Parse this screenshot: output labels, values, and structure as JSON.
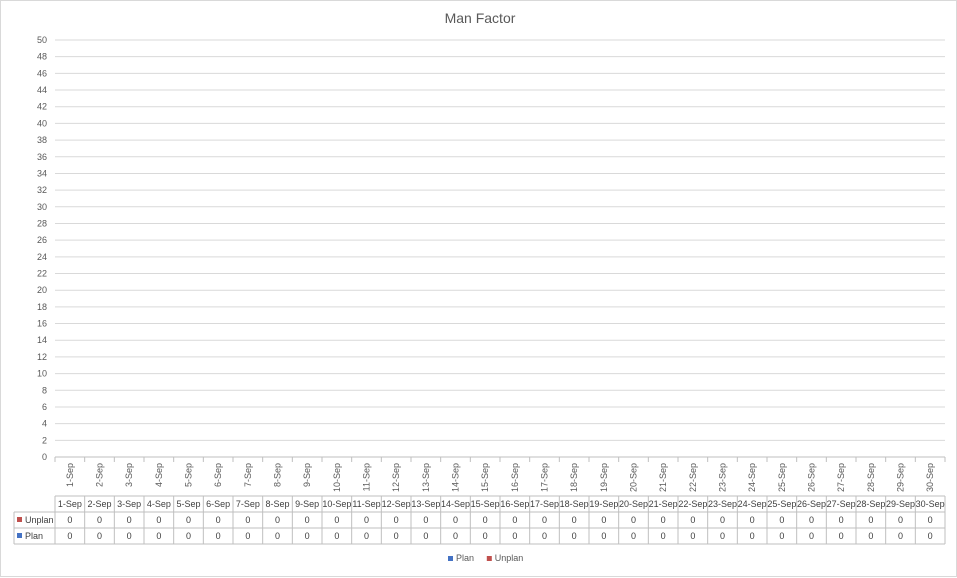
{
  "chart_data": {
    "type": "bar",
    "title": "Man Factor",
    "categories": [
      "1-Sep",
      "2-Sep",
      "3-Sep",
      "4-Sep",
      "5-Sep",
      "6-Sep",
      "7-Sep",
      "8-Sep",
      "9-Sep",
      "10-Sep",
      "11-Sep",
      "12-Sep",
      "13-Sep",
      "14-Sep",
      "15-Sep",
      "16-Sep",
      "17-Sep",
      "18-Sep",
      "19-Sep",
      "20-Sep",
      "21-Sep",
      "22-Sep",
      "23-Sep",
      "24-Sep",
      "25-Sep",
      "26-Sep",
      "27-Sep",
      "28-Sep",
      "29-Sep",
      "30-Sep"
    ],
    "series": [
      {
        "name": "Plan",
        "color": "#4472c4",
        "values": [
          0,
          0,
          0,
          0,
          0,
          0,
          0,
          0,
          0,
          0,
          0,
          0,
          0,
          0,
          0,
          0,
          0,
          0,
          0,
          0,
          0,
          0,
          0,
          0,
          0,
          0,
          0,
          0,
          0,
          0
        ]
      },
      {
        "name": "Unplan",
        "color": "#c0504d",
        "values": [
          0,
          0,
          0,
          0,
          0,
          0,
          0,
          0,
          0,
          0,
          0,
          0,
          0,
          0,
          0,
          0,
          0,
          0,
          0,
          0,
          0,
          0,
          0,
          0,
          0,
          0,
          0,
          0,
          0,
          0
        ]
      }
    ],
    "ylim": [
      0,
      50
    ],
    "ytick_step": 2,
    "grid": true,
    "legend_position": "bottom",
    "data_table": true,
    "table_row_order": [
      "Unplan",
      "Plan"
    ]
  }
}
